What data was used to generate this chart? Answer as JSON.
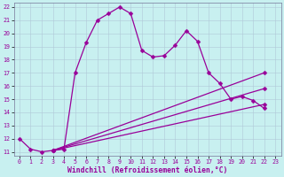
{
  "xlabel": "Windchill (Refroidissement éolien,°C)",
  "bg_color": "#c8f0f0",
  "line_color": "#990099",
  "grid_color": "#b0c8d8",
  "xlim": [
    -0.5,
    23.5
  ],
  "ylim": [
    10.7,
    22.3
  ],
  "yticks": [
    11,
    12,
    13,
    14,
    15,
    16,
    17,
    18,
    19,
    20,
    21,
    22
  ],
  "xticks": [
    0,
    1,
    2,
    3,
    4,
    5,
    6,
    7,
    8,
    9,
    10,
    11,
    12,
    13,
    14,
    15,
    16,
    17,
    18,
    19,
    20,
    21,
    22,
    23
  ],
  "main_x": [
    0,
    1,
    2,
    3,
    4,
    5,
    6,
    7,
    8,
    9,
    10,
    11,
    12,
    13,
    14,
    15,
    16,
    17,
    18,
    19,
    20,
    21,
    22
  ],
  "main_y": [
    12.0,
    11.2,
    11.0,
    11.1,
    11.2,
    17.0,
    19.3,
    21.0,
    21.5,
    22.0,
    21.5,
    18.7,
    18.2,
    18.3,
    19.1,
    20.2,
    19.4,
    17.0,
    16.2,
    15.0,
    15.2,
    14.9,
    14.3
  ],
  "line1_x": [
    3,
    22
  ],
  "line1_y": [
    11.1,
    17.0
  ],
  "line2_x": [
    3,
    22
  ],
  "line2_y": [
    11.1,
    15.8
  ],
  "line3_x": [
    3,
    22
  ],
  "line3_y": [
    11.1,
    14.6
  ],
  "marker": "D",
  "markersize": 2.5,
  "linewidth": 0.9,
  "tick_fontsize": 4.8,
  "label_fontsize": 5.8
}
